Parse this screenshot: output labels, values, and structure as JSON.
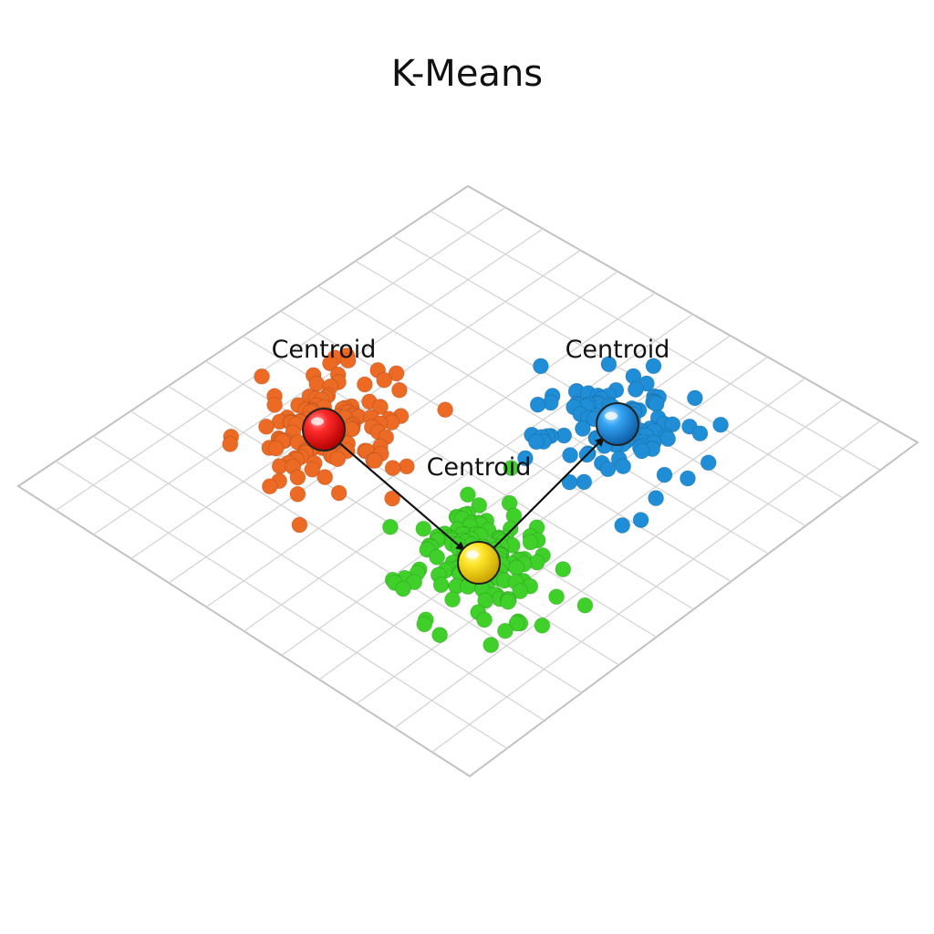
{
  "title": "K-Means",
  "colors": {
    "grid": "#d4d4d4",
    "grid_border": "#c2c2c2",
    "cluster_a": "#ec6a24",
    "cluster_b": "#1f8ed6",
    "cluster_c": "#3fd12a",
    "centroid_a": "#ee1111",
    "centroid_b": "#2a98ee",
    "centroid_c": "#ffe12a",
    "arrow": "#111111"
  },
  "clusters": [
    {
      "color": "cluster_a",
      "centroid_color": "centroid_a",
      "label": "Centroid",
      "point_count": 150
    },
    {
      "color": "cluster_b",
      "centroid_color": "centroid_b",
      "label": "Centroid",
      "point_count": 130
    },
    {
      "color": "cluster_c",
      "centroid_color": "centroid_c",
      "label": "Centroid",
      "point_count": 160
    }
  ],
  "arrows": [
    {
      "from": 0,
      "to": 2
    },
    {
      "from": 2,
      "to": 1
    }
  ]
}
